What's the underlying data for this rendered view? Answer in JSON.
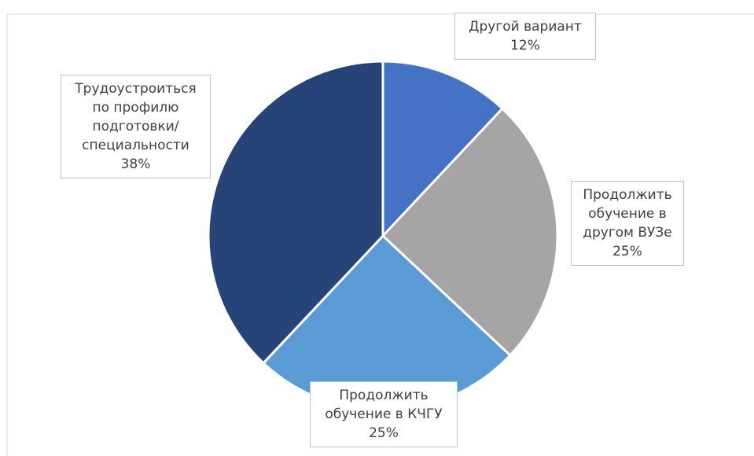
{
  "chart_data": {
    "type": "pie",
    "categories": [
      "Другой вариант",
      "Продолжить обучение в другом ВУЗе",
      "Продолжить обучение в КЧГУ",
      "Трудоустроиться по профилю подготовки/специальности"
    ],
    "values": [
      12,
      25,
      25,
      38
    ],
    "value_labels": [
      "12%",
      "25%",
      "25%",
      "38%"
    ],
    "colors": [
      "#4472c4",
      "#a5a5a5",
      "#5b9bd5",
      "#264478"
    ]
  }
}
